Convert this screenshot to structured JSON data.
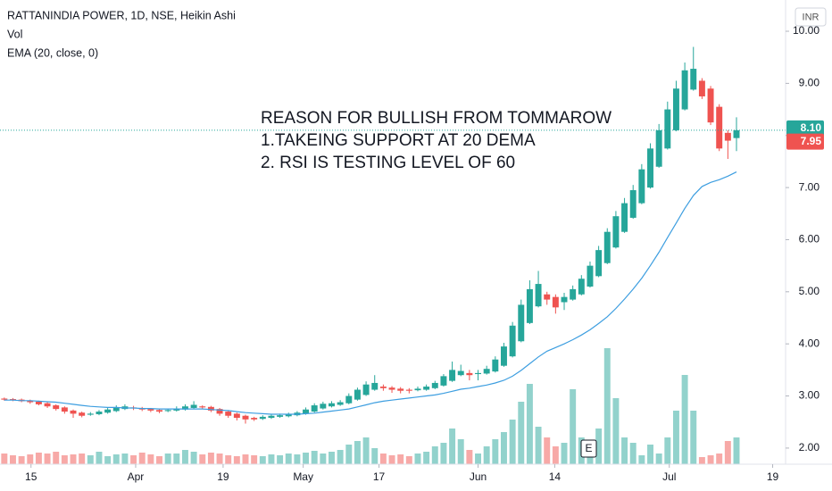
{
  "chart_data": {
    "type": "candlestick",
    "title": "RATTANINDIA POWER, 1D, NSE, Heikin Ashi",
    "indicators": [
      "Vol",
      "EMA (20, close, 0)"
    ],
    "currency": "INR",
    "annotations": [
      "REASON FOR BULLISH FROM TOMMAROW",
      "1.TAKEING SUPPORT AT 20 DEMA",
      "2. RSI IS TESTING LEVEL OF 60"
    ],
    "earnings_marker": "E",
    "up_color": "#26a69a",
    "down_color": "#ef5350",
    "ema_color": "#3d9ee0",
    "candles": [
      [
        2.95,
        2.97,
        2.91,
        2.93
      ],
      [
        2.94,
        2.96,
        2.9,
        2.92
      ],
      [
        2.93,
        2.95,
        2.88,
        2.9
      ],
      [
        2.91,
        2.93,
        2.85,
        2.88
      ],
      [
        2.89,
        2.91,
        2.82,
        2.84
      ],
      [
        2.86,
        2.88,
        2.77,
        2.8
      ],
      [
        2.82,
        2.84,
        2.72,
        2.75
      ],
      [
        2.78,
        2.8,
        2.66,
        2.7
      ],
      [
        2.72,
        2.74,
        2.58,
        2.66
      ],
      [
        2.68,
        2.7,
        2.59,
        2.62
      ],
      [
        2.64,
        2.69,
        2.62,
        2.66
      ],
      [
        2.65,
        2.73,
        2.63,
        2.7
      ],
      [
        2.68,
        2.77,
        2.66,
        2.74
      ],
      [
        2.71,
        2.82,
        2.69,
        2.78
      ],
      [
        2.75,
        2.84,
        2.73,
        2.8
      ],
      [
        2.78,
        2.81,
        2.73,
        2.76
      ],
      [
        2.77,
        2.79,
        2.71,
        2.74
      ],
      [
        2.75,
        2.77,
        2.69,
        2.72
      ],
      [
        2.73,
        2.75,
        2.67,
        2.7
      ],
      [
        2.71,
        2.76,
        2.69,
        2.73
      ],
      [
        2.72,
        2.8,
        2.7,
        2.76
      ],
      [
        2.74,
        2.84,
        2.72,
        2.8
      ],
      [
        2.77,
        2.9,
        2.75,
        2.83
      ],
      [
        2.8,
        2.82,
        2.75,
        2.78
      ],
      [
        2.79,
        2.81,
        2.69,
        2.72
      ],
      [
        2.75,
        2.77,
        2.62,
        2.66
      ],
      [
        2.7,
        2.72,
        2.58,
        2.62
      ],
      [
        2.66,
        2.68,
        2.53,
        2.58
      ],
      [
        2.62,
        2.64,
        2.47,
        2.55
      ],
      [
        2.58,
        2.6,
        2.52,
        2.55
      ],
      [
        2.56,
        2.63,
        2.54,
        2.6
      ],
      [
        2.58,
        2.65,
        2.56,
        2.62
      ],
      [
        2.6,
        2.66,
        2.58,
        2.63
      ],
      [
        2.61,
        2.68,
        2.59,
        2.65
      ],
      [
        2.63,
        2.71,
        2.61,
        2.68
      ],
      [
        2.66,
        2.78,
        2.64,
        2.74
      ],
      [
        2.7,
        2.86,
        2.68,
        2.82
      ],
      [
        2.76,
        2.89,
        2.74,
        2.85
      ],
      [
        2.8,
        2.9,
        2.78,
        2.86
      ],
      [
        2.83,
        2.92,
        2.81,
        2.88
      ],
      [
        2.86,
        3.05,
        2.84,
        3.0
      ],
      [
        2.93,
        3.16,
        2.91,
        3.12
      ],
      [
        3.02,
        3.28,
        3.0,
        3.22
      ],
      [
        3.12,
        3.4,
        3.1,
        3.25
      ],
      [
        3.18,
        3.22,
        3.1,
        3.15
      ],
      [
        3.16,
        3.19,
        3.06,
        3.12
      ],
      [
        3.14,
        3.17,
        3.05,
        3.1
      ],
      [
        3.12,
        3.15,
        3.05,
        3.1
      ],
      [
        3.11,
        3.18,
        3.09,
        3.14
      ],
      [
        3.12,
        3.22,
        3.1,
        3.18
      ],
      [
        3.15,
        3.29,
        3.13,
        3.25
      ],
      [
        3.2,
        3.42,
        3.18,
        3.38
      ],
      [
        3.29,
        3.66,
        3.27,
        3.5
      ],
      [
        3.4,
        3.6,
        3.38,
        3.48
      ],
      [
        3.44,
        3.5,
        3.3,
        3.4
      ],
      [
        3.42,
        3.5,
        3.3,
        3.44
      ],
      [
        3.43,
        3.58,
        3.41,
        3.52
      ],
      [
        3.47,
        3.76,
        3.45,
        3.7
      ],
      [
        3.58,
        4.02,
        3.56,
        3.95
      ],
      [
        3.76,
        4.42,
        3.74,
        4.35
      ],
      [
        4.05,
        4.85,
        4.03,
        4.75
      ],
      [
        4.4,
        5.22,
        4.38,
        5.05
      ],
      [
        4.72,
        5.4,
        4.7,
        5.15
      ],
      [
        4.95,
        5.0,
        4.75,
        4.85
      ],
      [
        4.9,
        4.95,
        4.58,
        4.7
      ],
      [
        4.8,
        4.98,
        4.65,
        4.9
      ],
      [
        4.85,
        5.12,
        4.83,
        5.05
      ],
      [
        4.95,
        5.32,
        4.93,
        5.25
      ],
      [
        5.1,
        5.58,
        5.08,
        5.5
      ],
      [
        5.3,
        5.88,
        5.28,
        5.8
      ],
      [
        5.55,
        6.22,
        5.53,
        6.15
      ],
      [
        5.85,
        6.55,
        5.83,
        6.45
      ],
      [
        6.15,
        6.8,
        6.13,
        6.7
      ],
      [
        6.42,
        7.05,
        6.4,
        6.95
      ],
      [
        6.7,
        7.45,
        6.68,
        7.35
      ],
      [
        7.0,
        7.85,
        6.98,
        7.75
      ],
      [
        7.4,
        8.22,
        7.38,
        8.1
      ],
      [
        7.75,
        8.65,
        7.73,
        8.5
      ],
      [
        8.1,
        9.05,
        8.08,
        8.9
      ],
      [
        8.5,
        9.4,
        8.48,
        9.25
      ],
      [
        8.88,
        9.7,
        8.86,
        9.28
      ],
      [
        9.05,
        9.1,
        8.7,
        8.75
      ],
      [
        8.9,
        8.95,
        8.2,
        8.25
      ],
      [
        8.55,
        8.6,
        7.7,
        7.75
      ],
      [
        8.05,
        8.1,
        7.55,
        7.9
      ],
      [
        7.95,
        8.35,
        7.7,
        8.1
      ]
    ],
    "volume": [
      12,
      10,
      9,
      11,
      13,
      12,
      14,
      10,
      11,
      12,
      10,
      14,
      9,
      11,
      12,
      10,
      13,
      11,
      9,
      12,
      12,
      16,
      14,
      11,
      13,
      12,
      10,
      9,
      11,
      10,
      9,
      11,
      10,
      12,
      11,
      13,
      15,
      12,
      14,
      16,
      22,
      26,
      30,
      18,
      12,
      10,
      11,
      9,
      12,
      14,
      20,
      24,
      40,
      28,
      16,
      12,
      20,
      28,
      36,
      50,
      70,
      90,
      42,
      30,
      20,
      24,
      84,
      30,
      20,
      40,
      130,
      74,
      30,
      24,
      10,
      22,
      12,
      30,
      60,
      100,
      60,
      8,
      10,
      12,
      26,
      30
    ],
    "ema": [
      2.92,
      2.92,
      2.91,
      2.91,
      2.9,
      2.89,
      2.88,
      2.86,
      2.84,
      2.82,
      2.8,
      2.79,
      2.78,
      2.78,
      2.77,
      2.77,
      2.76,
      2.76,
      2.75,
      2.75,
      2.75,
      2.75,
      2.75,
      2.75,
      2.74,
      2.73,
      2.72,
      2.7,
      2.68,
      2.67,
      2.66,
      2.65,
      2.65,
      2.65,
      2.65,
      2.66,
      2.67,
      2.69,
      2.71,
      2.73,
      2.75,
      2.79,
      2.83,
      2.87,
      2.9,
      2.92,
      2.94,
      2.96,
      2.98,
      3.0,
      3.02,
      3.05,
      3.09,
      3.13,
      3.15,
      3.18,
      3.21,
      3.25,
      3.3,
      3.38,
      3.49,
      3.62,
      3.75,
      3.86,
      3.93,
      4.0,
      4.08,
      4.17,
      4.27,
      4.39,
      4.52,
      4.68,
      4.86,
      5.05,
      5.26,
      5.5,
      5.76,
      6.04,
      6.32,
      6.6,
      6.85,
      7.02,
      7.1,
      7.15,
      7.22,
      7.3
    ],
    "price_labels": [
      {
        "value": 8.1,
        "label": "8.10",
        "color": "#26a69a"
      },
      {
        "value": 7.95,
        "label": "7.95",
        "color": "#ef5350"
      }
    ],
    "xlim": [
      -0.5,
      90.7
    ],
    "xticks": [
      {
        "value": 3.1,
        "label": "15"
      },
      {
        "value": 15.25,
        "label": "Apr"
      },
      {
        "value": 25.4,
        "label": "19"
      },
      {
        "value": 34.7,
        "label": "May"
      },
      {
        "value": 43.5,
        "label": "17"
      },
      {
        "value": 55.0,
        "label": "Jun"
      },
      {
        "value": 63.9,
        "label": "14"
      },
      {
        "value": 77.2,
        "label": "Jul"
      },
      {
        "value": 89.2,
        "label": "19"
      }
    ],
    "ylim": [
      1.69,
      10.6
    ],
    "yticks": [
      {
        "value": 2,
        "label": "2.00"
      },
      {
        "value": 3,
        "label": "3.00"
      },
      {
        "value": 4,
        "label": "4.00"
      },
      {
        "value": 5,
        "label": "5.00"
      },
      {
        "value": 6,
        "label": "6.00"
      },
      {
        "value": 7,
        "label": "7.00"
      },
      {
        "value": 8,
        "label": "8.00"
      },
      {
        "value": 9,
        "label": "9.00"
      },
      {
        "value": 10,
        "label": "10.00"
      }
    ],
    "grid": false
  }
}
